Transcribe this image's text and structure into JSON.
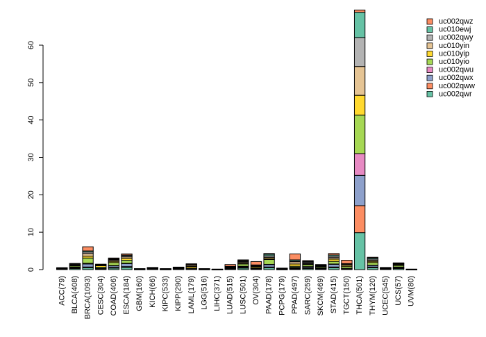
{
  "chart_data": {
    "type": "bar",
    "stacked": true,
    "title": "",
    "xlabel": "",
    "ylabel": "",
    "ylim": [
      0,
      70
    ],
    "yticks": [
      0,
      10,
      20,
      30,
      40,
      50,
      60
    ],
    "grid": false,
    "legend_position": "top-right",
    "categories": [
      "ACC(79)",
      "BLCA(408)",
      "BRCA(1093)",
      "CESC(304)",
      "COAD(406)",
      "ESCA(184)",
      "GBM(160)",
      "KICH(66)",
      "KIPC(533)",
      "KIPP(290)",
      "LAML(179)",
      "LGG(516)",
      "LIHC(371)",
      "LUAD(515)",
      "LUSC(501)",
      "OV(304)",
      "PAAD(178)",
      "PCPG(179)",
      "PPAD(497)",
      "SARC(259)",
      "SKCM(469)",
      "STAD(415)",
      "TGCT(150)",
      "THCA(501)",
      "THYM(120)",
      "UCEC(545)",
      "UCS(57)",
      "UVM(80)"
    ],
    "series": [
      {
        "name": "uc002qwr",
        "color": "#66c2a5",
        "values": [
          0.1,
          0.3,
          0.5,
          0.1,
          0.4,
          0.6,
          0.05,
          0.1,
          0.05,
          0.1,
          0.1,
          0.05,
          0.02,
          0.1,
          0.4,
          0.1,
          0.5,
          0.05,
          0.2,
          0.3,
          0.2,
          0.5,
          0.1,
          9.9,
          0.5,
          0.1,
          0.3,
          0.02
        ]
      },
      {
        "name": "uc002qww",
        "color": "#fc8d62",
        "values": [
          0.05,
          0.1,
          0.2,
          0.1,
          0.2,
          0.2,
          0.02,
          0.05,
          0.02,
          0.05,
          0.05,
          0.02,
          0.01,
          0.1,
          0.2,
          0.1,
          0.2,
          0.02,
          0.1,
          0.1,
          0.1,
          0.2,
          0.05,
          7.2,
          0.2,
          0.05,
          0.1,
          0.01
        ]
      },
      {
        "name": "uc002qwx",
        "color": "#8da0cb",
        "values": [
          0.05,
          0.2,
          0.8,
          0.1,
          0.4,
          0.8,
          0.02,
          0.05,
          0.02,
          0.05,
          0.05,
          0.02,
          0.01,
          0.1,
          0.2,
          0.1,
          0.6,
          0.02,
          0.2,
          0.3,
          0.2,
          0.7,
          0.1,
          8.1,
          0.4,
          0.05,
          0.2,
          0.01
        ]
      },
      {
        "name": "uc002qwu",
        "color": "#e78ac3",
        "values": [
          0.02,
          0.05,
          0.2,
          0.05,
          0.1,
          0.1,
          0.01,
          0.02,
          0.01,
          0.02,
          0.05,
          0.01,
          0.01,
          0.05,
          0.1,
          0.05,
          0.1,
          0.01,
          0.1,
          0.1,
          0.05,
          0.1,
          0.05,
          5.8,
          0.1,
          0.02,
          0.1,
          0.01
        ]
      },
      {
        "name": "uc010yio",
        "color": "#a6d854",
        "values": [
          0.05,
          0.3,
          1.4,
          0.3,
          0.8,
          0.8,
          0.05,
          0.1,
          0.05,
          0.1,
          0.2,
          0.05,
          0.02,
          0.1,
          0.6,
          0.2,
          1.3,
          0.05,
          0.3,
          0.5,
          0.3,
          0.7,
          0.5,
          10.3,
          0.7,
          0.1,
          0.4,
          0.02
        ]
      },
      {
        "name": "uc010yip",
        "color": "#ffd92f",
        "values": [
          0.05,
          0.1,
          0.5,
          0.4,
          0.3,
          0.5,
          0.02,
          0.05,
          0.02,
          0.1,
          0.4,
          0.02,
          0.01,
          0.1,
          0.2,
          0.3,
          0.3,
          0.05,
          0.6,
          0.2,
          0.1,
          0.6,
          0.3,
          5.3,
          0.3,
          0.05,
          0.2,
          0.01
        ]
      },
      {
        "name": "uc010yin",
        "color": "#e5c494",
        "values": [
          0.05,
          0.2,
          0.7,
          0.1,
          0.3,
          0.4,
          0.02,
          0.05,
          0.02,
          0.1,
          0.3,
          0.02,
          0.01,
          0.1,
          0.3,
          0.2,
          0.3,
          0.05,
          0.6,
          0.2,
          0.1,
          0.4,
          0.3,
          7.7,
          0.3,
          0.05,
          0.2,
          0.01
        ]
      },
      {
        "name": "uc002qwy",
        "color": "#b3b3b3",
        "values": [
          0.05,
          0.2,
          0.4,
          0.1,
          0.2,
          0.3,
          0.02,
          0.05,
          0.02,
          0.05,
          0.1,
          0.02,
          0.01,
          0.1,
          0.2,
          0.1,
          0.4,
          0.05,
          0.2,
          0.3,
          0.1,
          0.4,
          0.1,
          7.7,
          0.3,
          0.05,
          0.1,
          0.01
        ]
      },
      {
        "name": "uc010ewj",
        "color": "#66c2a5",
        "values": [
          0.05,
          0.1,
          0.3,
          0.1,
          0.2,
          0.2,
          0.02,
          0.05,
          0.02,
          0.05,
          0.1,
          0.02,
          0.01,
          0.1,
          0.2,
          0.1,
          0.4,
          0.05,
          0.3,
          0.2,
          0.1,
          0.3,
          0.1,
          6.8,
          0.3,
          0.05,
          0.1,
          0.01
        ]
      },
      {
        "name": "uc002qwz",
        "color": "#fc8d62",
        "values": [
          0.05,
          0.1,
          1.1,
          0.1,
          0.2,
          0.3,
          0.02,
          0.05,
          0.02,
          0.05,
          0.2,
          0.02,
          0.01,
          0.5,
          0.2,
          0.9,
          0.2,
          0.05,
          1.6,
          0.2,
          0.1,
          0.4,
          0.9,
          0.6,
          0.2,
          0.05,
          0.1,
          0.01
        ]
      }
    ]
  }
}
